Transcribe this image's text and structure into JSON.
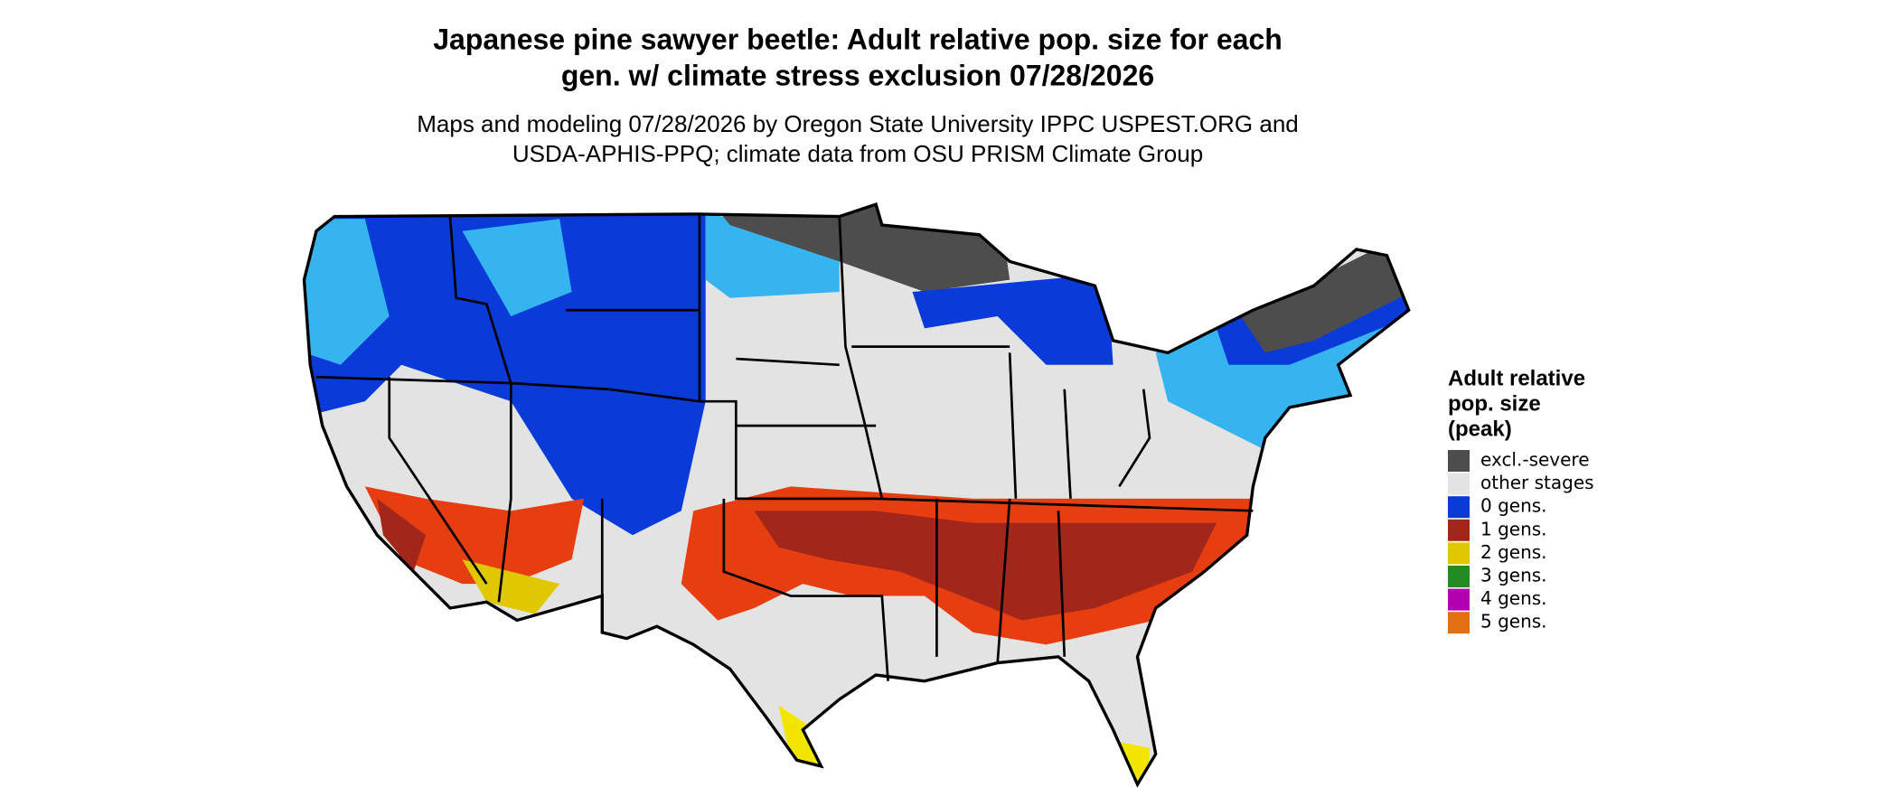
{
  "title": [
    "Japanese pine sawyer beetle: Adult relative pop. size for each",
    "gen. w/ climate stress exclusion 07/28/2026"
  ],
  "subtitle": [
    "Maps and modeling 07/28/2026 by Oregon State University IPPC USPEST.ORG and",
    "USDA-APHIS-PPQ; climate data from OSU PRISM Climate Group"
  ],
  "legend": {
    "title": [
      "Adult relative",
      "pop. size",
      "(peak)"
    ],
    "items": [
      {
        "label": "excl.-severe",
        "color": "#4d4d4d"
      },
      {
        "label": "other stages",
        "color": "#e3e3e3"
      },
      {
        "label": "0 gens.",
        "color": "#0a3ad8"
      },
      {
        "label": "1 gens.",
        "color": "#a3261a"
      },
      {
        "label": "2 gens.",
        "color": "#e0c800"
      },
      {
        "label": "3 gens.",
        "color": "#228b22"
      },
      {
        "label": "4 gens.",
        "color": "#b000b0"
      },
      {
        "label": "5 gens.",
        "color": "#e07010"
      }
    ]
  }
}
